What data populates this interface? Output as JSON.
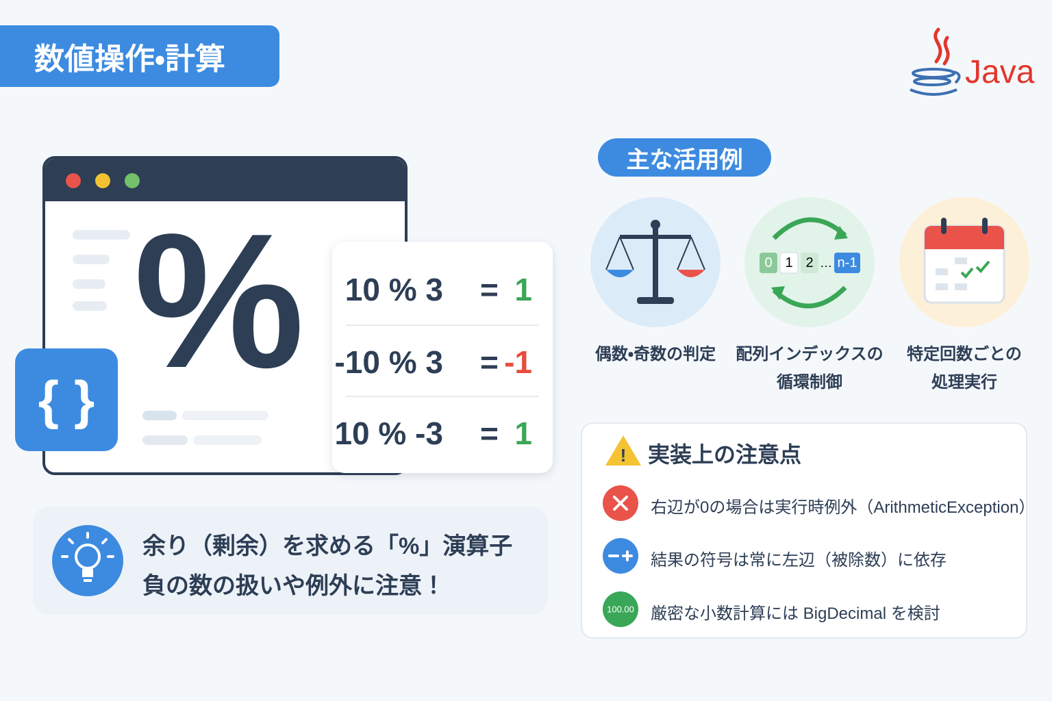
{
  "header": {
    "title": "数値操作・計算",
    "logo": "Java"
  },
  "illustration": {
    "symbol": "%",
    "code_icon": "{ }"
  },
  "examples": {
    "equals": "=",
    "rows": [
      {
        "expression": "10 % 3",
        "result": "1"
      },
      {
        "expression": "-10 % 3",
        "result": "-1"
      },
      {
        "expression": "10 % -3",
        "result": "1"
      }
    ]
  },
  "tip": {
    "lines": [
      "余り（剰余）を求める「%」演算子",
      "負の数の扱いや例外に注意！"
    ]
  },
  "usage": {
    "title": "主な活用例",
    "loop_icon": [
      "0",
      "1",
      "2",
      "…",
      "n-1"
    ],
    "items": [
      {
        "lines": [
          "偶数・奇数の判定"
        ]
      },
      {
        "lines": [
          "配列インデックスの",
          "循環制御"
        ]
      },
      {
        "lines": [
          "特定回数ごとの",
          "処理実行"
        ]
      }
    ]
  },
  "cautions": {
    "title": "実装上の注意点",
    "warning_icon": "!",
    "items": [
      {
        "text": "右辺が0の場合は実行時例外（ArithmeticException）"
      },
      {
        "text": "結果の符号は常に左辺（被除数）に依存"
      },
      {
        "icon": "100.00",
        "text": "厳密な小数計算には BigDecimal を検討"
      }
    ]
  }
}
